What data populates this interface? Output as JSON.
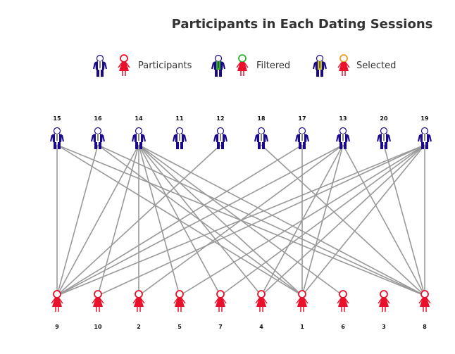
{
  "title": "Participants in Each Dating Sessions",
  "legend": [
    {
      "label": "Participants",
      "state": "participants"
    },
    {
      "label": "Filtered",
      "state": "filtered"
    },
    {
      "label": "Selected",
      "state": "selected"
    }
  ],
  "colors": {
    "male": "#1a0a8a",
    "female": "#e8102a",
    "edge": "#999999",
    "filtered_shirt": "#2fb02f",
    "selected_shirt": "#c9c02a"
  },
  "males": [
    "15",
    "16",
    "14",
    "11",
    "12",
    "18",
    "17",
    "13",
    "20",
    "19"
  ],
  "females": [
    "9",
    "10",
    "2",
    "5",
    "7",
    "4",
    "1",
    "6",
    "3",
    "8"
  ],
  "edges": [
    [
      "15",
      "9"
    ],
    [
      "15",
      "1"
    ],
    [
      "15",
      "8"
    ],
    [
      "16",
      "9"
    ],
    [
      "16",
      "1"
    ],
    [
      "16",
      "8"
    ],
    [
      "14",
      "9"
    ],
    [
      "14",
      "10"
    ],
    [
      "14",
      "2"
    ],
    [
      "14",
      "5"
    ],
    [
      "14",
      "7"
    ],
    [
      "14",
      "4"
    ],
    [
      "14",
      "1"
    ],
    [
      "14",
      "6"
    ],
    [
      "14",
      "8"
    ],
    [
      "12",
      "9"
    ],
    [
      "18",
      "8"
    ],
    [
      "17",
      "9"
    ],
    [
      "17",
      "1"
    ],
    [
      "13",
      "9"
    ],
    [
      "13",
      "2"
    ],
    [
      "13",
      "4"
    ],
    [
      "13",
      "1"
    ],
    [
      "13",
      "8"
    ],
    [
      "20",
      "8"
    ],
    [
      "19",
      "9"
    ],
    [
      "19",
      "10"
    ],
    [
      "19",
      "5"
    ],
    [
      "19",
      "7"
    ],
    [
      "19",
      "4"
    ],
    [
      "19",
      "1"
    ],
    [
      "19",
      "8"
    ]
  ]
}
